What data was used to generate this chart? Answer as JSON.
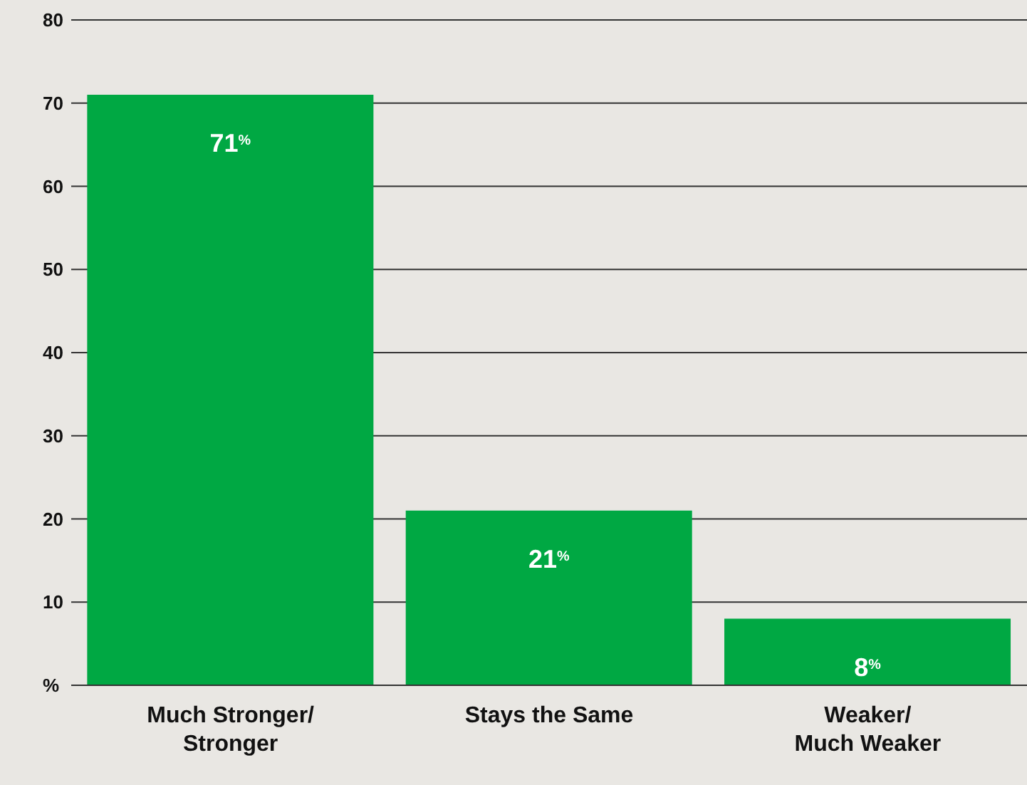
{
  "chart_data": {
    "type": "bar",
    "categories": [
      "Much Stronger/ Stronger",
      "Stays the Same",
      "Weaker/ Much Weaker"
    ],
    "values": [
      71,
      21,
      8
    ],
    "value_labels": [
      "71$^{%}$",
      "21$^{%}$",
      "8$^{%}$"
    ],
    "color": "#00a843",
    "ylim": [
      0,
      80
    ],
    "yticks": [
      {
        "value": 0,
        "label": "%"
      },
      10,
      20,
      30,
      40,
      50,
      60,
      70,
      80
    ],
    "grid": "y"
  }
}
